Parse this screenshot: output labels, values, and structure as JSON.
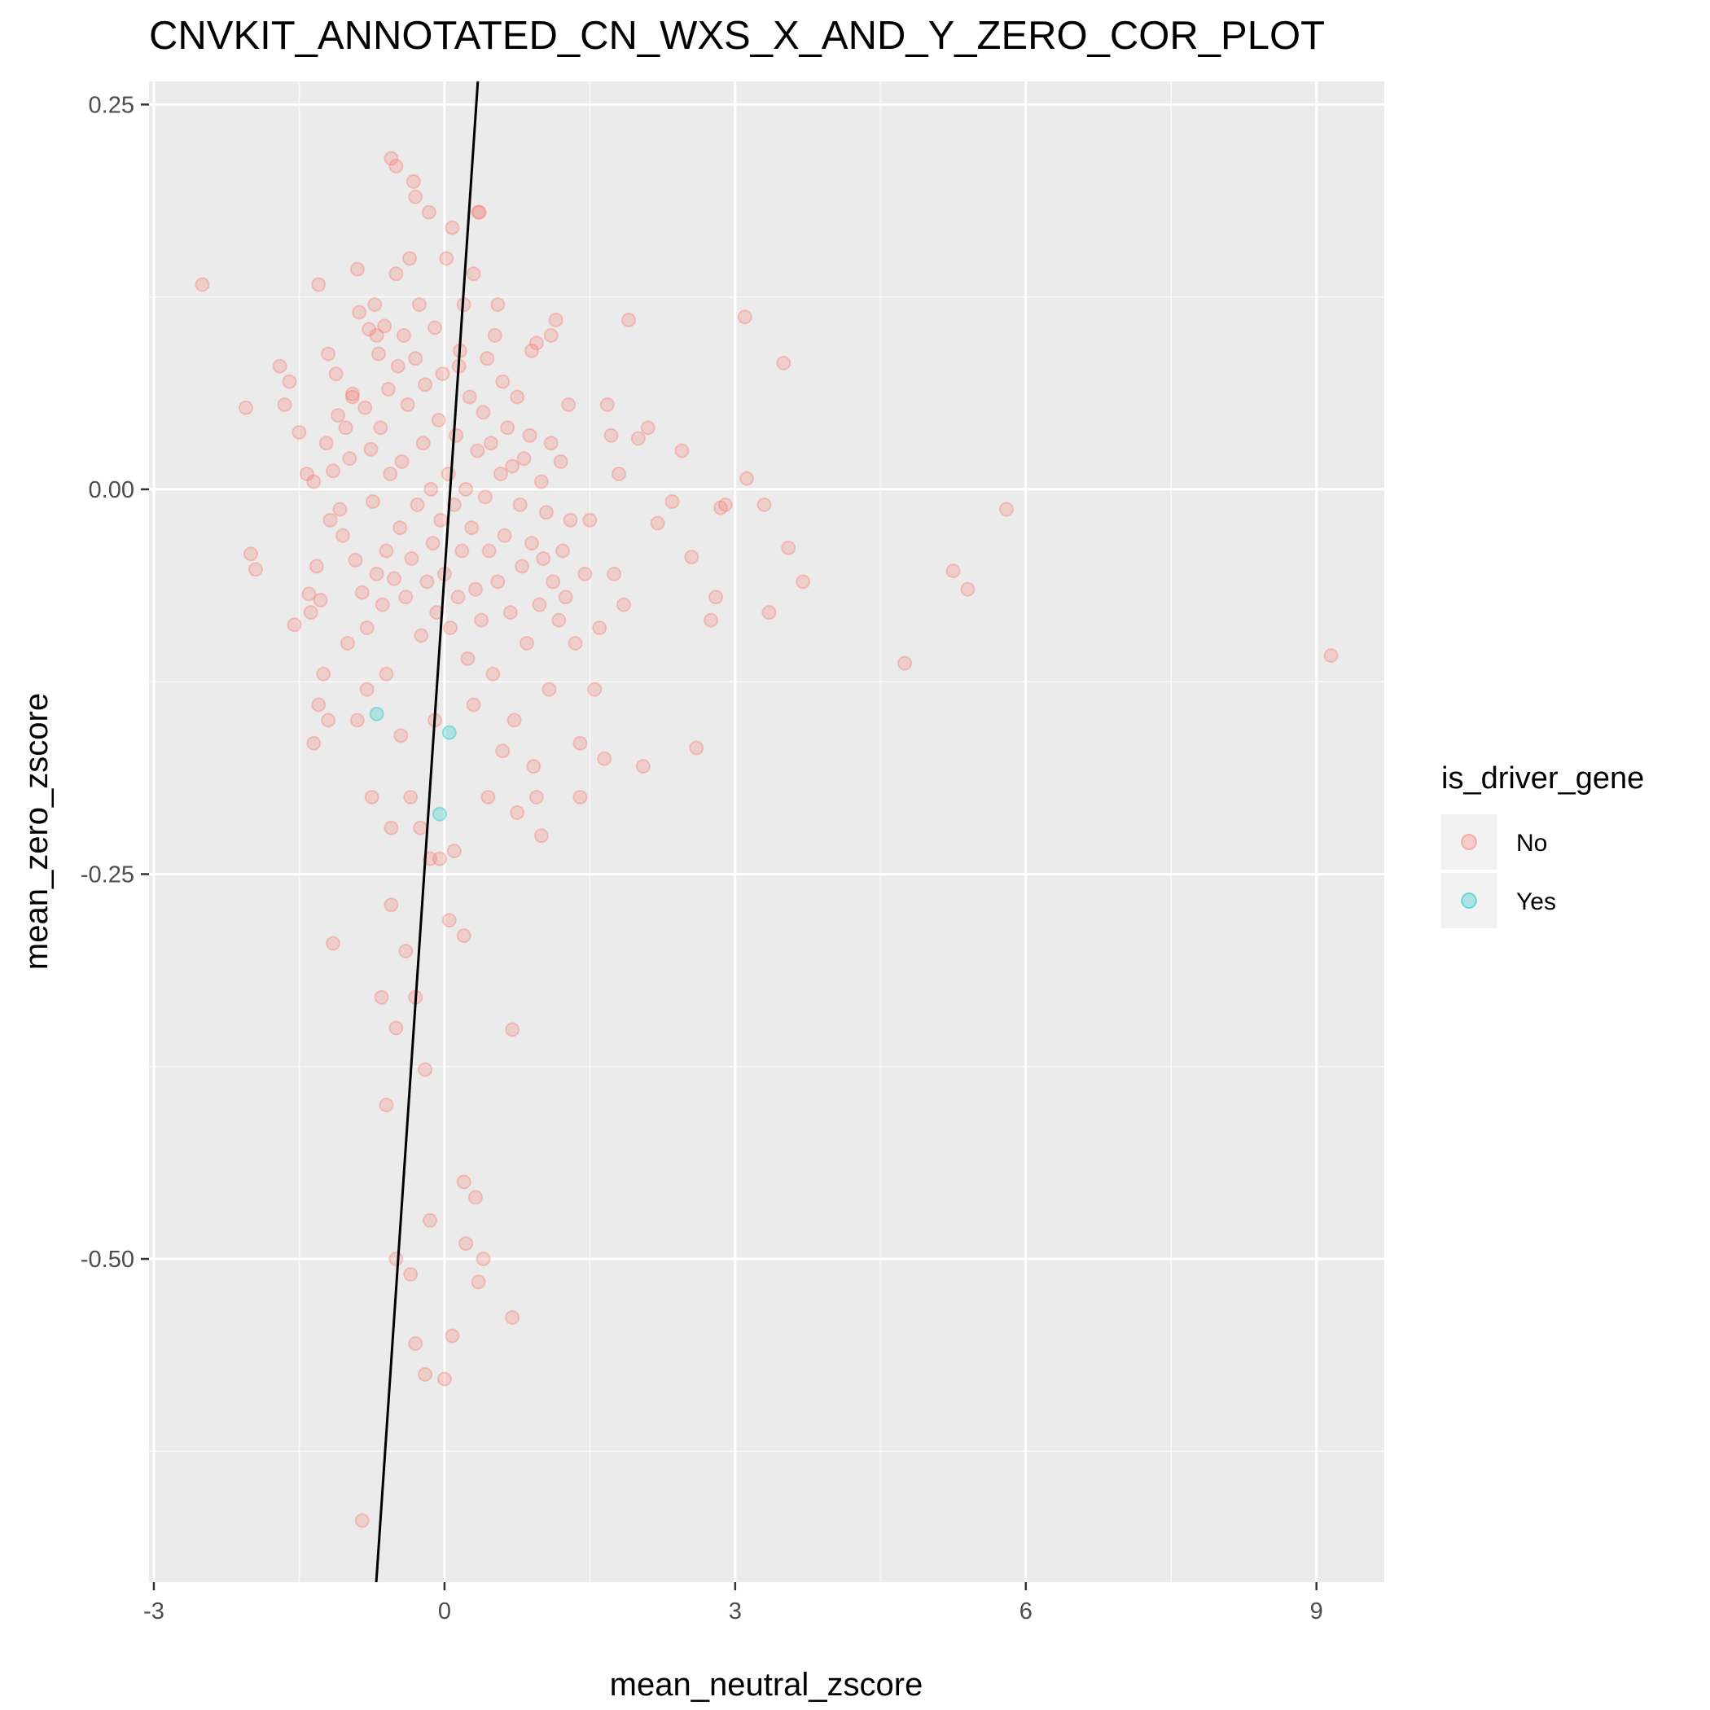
{
  "chart_data": {
    "type": "scatter",
    "title": "CNVKIT_ANNOTATED_CN_WXS_X_AND_Y_ZERO_COR_PLOT",
    "xlabel": "mean_neutral_zscore",
    "ylabel": "mean_zero_zscore",
    "xlim": [
      -3.05,
      9.7
    ],
    "ylim": [
      -0.71,
      0.265
    ],
    "x_ticks": [
      -3,
      0,
      3,
      6,
      9
    ],
    "x_tick_labels": [
      "-3",
      "0",
      "3",
      "6",
      "9"
    ],
    "y_ticks": [
      -0.5,
      -0.25,
      0.0,
      0.25
    ],
    "y_tick_labels": [
      "-0.50",
      "-0.25",
      "0.00",
      "0.25"
    ],
    "grid": true,
    "legend": {
      "title": "is_driver_gene",
      "position": "right",
      "entries": [
        {
          "label": "No",
          "color": "#F8766D"
        },
        {
          "label": "Yes",
          "color": "#00BFC4"
        }
      ]
    },
    "series": [
      {
        "name": "No",
        "color": "#F8766D",
        "points": [
          [
            -2.5,
            0.133
          ],
          [
            -2.05,
            0.053
          ],
          [
            -2.0,
            -0.042
          ],
          [
            -1.95,
            -0.052
          ],
          [
            -1.7,
            0.08
          ],
          [
            -1.65,
            0.055
          ],
          [
            -1.6,
            0.07
          ],
          [
            -1.55,
            -0.088
          ],
          [
            -1.5,
            0.037
          ],
          [
            -1.42,
            0.01
          ],
          [
            -1.4,
            -0.068
          ],
          [
            -1.38,
            -0.08
          ],
          [
            -1.35,
            0.005
          ],
          [
            -1.32,
            -0.05
          ],
          [
            -1.3,
            0.133
          ],
          [
            -1.28,
            -0.072
          ],
          [
            -1.25,
            -0.12
          ],
          [
            -1.22,
            0.03
          ],
          [
            -1.2,
            0.088
          ],
          [
            -1.18,
            -0.02
          ],
          [
            -1.15,
            0.012
          ],
          [
            -1.12,
            0.075
          ],
          [
            -1.1,
            0.048
          ],
          [
            -1.08,
            -0.013
          ],
          [
            -1.05,
            -0.03
          ],
          [
            -1.02,
            0.04
          ],
          [
            -1.0,
            -0.1
          ],
          [
            -0.98,
            0.02
          ],
          [
            -0.95,
            0.062
          ],
          [
            -0.92,
            -0.046
          ],
          [
            -0.9,
            0.143
          ],
          [
            -0.88,
            0.115
          ],
          [
            -0.85,
            -0.067
          ],
          [
            -0.82,
            0.053
          ],
          [
            -0.8,
            -0.09
          ],
          [
            -0.78,
            0.104
          ],
          [
            -0.76,
            0.026
          ],
          [
            -0.74,
            -0.008
          ],
          [
            -0.72,
            0.12
          ],
          [
            -0.7,
            -0.055
          ],
          [
            -0.68,
            0.088
          ],
          [
            -0.66,
            0.04
          ],
          [
            -0.64,
            -0.075
          ],
          [
            -0.62,
            0.106
          ],
          [
            -0.6,
            -0.04
          ],
          [
            -0.58,
            0.065
          ],
          [
            -0.56,
            0.01
          ],
          [
            -0.55,
            0.215
          ],
          [
            -0.52,
            -0.058
          ],
          [
            -0.5,
            0.14
          ],
          [
            -0.48,
            0.08
          ],
          [
            -0.46,
            -0.025
          ],
          [
            -0.44,
            0.018
          ],
          [
            -0.42,
            0.1
          ],
          [
            -0.4,
            -0.07
          ],
          [
            -0.38,
            0.055
          ],
          [
            -0.36,
            0.15
          ],
          [
            -0.34,
            -0.045
          ],
          [
            -0.32,
            0.2
          ],
          [
            -0.3,
            0.085
          ],
          [
            -0.28,
            -0.01
          ],
          [
            -0.26,
            0.12
          ],
          [
            -0.24,
            -0.095
          ],
          [
            -0.22,
            0.03
          ],
          [
            -0.2,
            0.068
          ],
          [
            -0.18,
            -0.06
          ],
          [
            -0.16,
            0.18
          ],
          [
            -0.14,
            0.0
          ],
          [
            -0.12,
            -0.035
          ],
          [
            -0.1,
            0.105
          ],
          [
            -0.08,
            -0.08
          ],
          [
            -0.06,
            0.045
          ],
          [
            -0.04,
            -0.02
          ],
          [
            -0.02,
            0.075
          ],
          [
            0.0,
            -0.055
          ],
          [
            0.02,
            0.15
          ],
          [
            0.04,
            0.01
          ],
          [
            0.06,
            -0.09
          ],
          [
            0.08,
            0.17
          ],
          [
            0.1,
            -0.01
          ],
          [
            0.12,
            0.035
          ],
          [
            0.14,
            -0.07
          ],
          [
            0.16,
            0.09
          ],
          [
            0.18,
            -0.04
          ],
          [
            0.2,
            0.12
          ],
          [
            0.22,
            0.0
          ],
          [
            0.24,
            -0.11
          ],
          [
            0.26,
            0.06
          ],
          [
            0.28,
            -0.025
          ],
          [
            0.3,
            0.14
          ],
          [
            0.32,
            -0.065
          ],
          [
            0.34,
            0.025
          ],
          [
            0.36,
            0.18
          ],
          [
            0.38,
            -0.085
          ],
          [
            0.4,
            0.05
          ],
          [
            0.42,
            -0.005
          ],
          [
            0.44,
            0.085
          ],
          [
            0.46,
            -0.04
          ],
          [
            0.48,
            0.03
          ],
          [
            0.5,
            -0.12
          ],
          [
            0.52,
            0.1
          ],
          [
            0.55,
            -0.06
          ],
          [
            0.58,
            0.01
          ],
          [
            0.6,
            0.07
          ],
          [
            0.62,
            -0.03
          ],
          [
            0.65,
            0.04
          ],
          [
            0.68,
            -0.08
          ],
          [
            0.7,
            0.015
          ],
          [
            0.72,
            -0.15
          ],
          [
            0.75,
            0.06
          ],
          [
            0.78,
            -0.01
          ],
          [
            0.8,
            -0.05
          ],
          [
            0.82,
            0.02
          ],
          [
            0.85,
            -0.1
          ],
          [
            0.88,
            0.035
          ],
          [
            0.9,
            -0.035
          ],
          [
            0.92,
            -0.18
          ],
          [
            0.95,
            0.095
          ],
          [
            0.98,
            -0.075
          ],
          [
            1.0,
            0.005
          ],
          [
            1.02,
            -0.045
          ],
          [
            1.05,
            -0.015
          ],
          [
            1.08,
            -0.13
          ],
          [
            1.1,
            0.03
          ],
          [
            1.12,
            -0.06
          ],
          [
            1.15,
            0.11
          ],
          [
            1.18,
            -0.085
          ],
          [
            1.2,
            0.018
          ],
          [
            1.22,
            -0.04
          ],
          [
            1.25,
            -0.07
          ],
          [
            1.28,
            0.055
          ],
          [
            1.3,
            -0.02
          ],
          [
            1.35,
            -0.1
          ],
          [
            1.4,
            -0.165
          ],
          [
            1.45,
            -0.055
          ],
          [
            1.5,
            -0.02
          ],
          [
            1.55,
            -0.13
          ],
          [
            1.6,
            -0.09
          ],
          [
            1.65,
            -0.175
          ],
          [
            1.68,
            0.055
          ],
          [
            1.72,
            0.035
          ],
          [
            1.75,
            -0.055
          ],
          [
            1.8,
            0.01
          ],
          [
            1.85,
            -0.075
          ],
          [
            1.9,
            0.11
          ],
          [
            2.0,
            0.033
          ],
          [
            2.05,
            -0.18
          ],
          [
            2.1,
            0.04
          ],
          [
            2.2,
            -0.022
          ],
          [
            2.35,
            -0.008
          ],
          [
            2.45,
            0.025
          ],
          [
            2.55,
            -0.044
          ],
          [
            2.6,
            -0.168
          ],
          [
            2.75,
            -0.085
          ],
          [
            2.8,
            -0.07
          ],
          [
            2.85,
            -0.012
          ],
          [
            2.9,
            -0.01
          ],
          [
            3.1,
            0.112
          ],
          [
            3.12,
            0.007
          ],
          [
            3.3,
            -0.01
          ],
          [
            3.35,
            -0.08
          ],
          [
            3.5,
            0.082
          ],
          [
            3.55,
            -0.038
          ],
          [
            3.7,
            -0.06
          ],
          [
            4.75,
            -0.113
          ],
          [
            5.25,
            -0.053
          ],
          [
            5.4,
            -0.065
          ],
          [
            5.8,
            -0.013
          ],
          [
            9.15,
            -0.108
          ],
          [
            -0.5,
            0.21
          ],
          [
            -0.3,
            0.19
          ],
          [
            0.35,
            0.18
          ],
          [
            -0.6,
            -0.12
          ],
          [
            -0.45,
            -0.16
          ],
          [
            -0.35,
            -0.2
          ],
          [
            -0.25,
            -0.22
          ],
          [
            -0.15,
            -0.24
          ],
          [
            -0.55,
            -0.27
          ],
          [
            -0.4,
            -0.3
          ],
          [
            -0.5,
            -0.35
          ],
          [
            -0.6,
            -0.4
          ],
          [
            -0.3,
            -0.33
          ],
          [
            0.05,
            -0.28
          ],
          [
            0.2,
            -0.29
          ],
          [
            0.7,
            -0.351
          ],
          [
            -0.2,
            -0.377
          ],
          [
            0.2,
            -0.45
          ],
          [
            0.32,
            -0.46
          ],
          [
            -0.15,
            -0.475
          ],
          [
            0.22,
            -0.49
          ],
          [
            -0.5,
            -0.5
          ],
          [
            0.4,
            -0.5
          ],
          [
            -0.35,
            -0.51
          ],
          [
            0.35,
            -0.515
          ],
          [
            0.7,
            -0.538
          ],
          [
            -0.3,
            -0.555
          ],
          [
            0.08,
            -0.55
          ],
          [
            -0.2,
            -0.575
          ],
          [
            0.0,
            -0.578
          ],
          [
            -0.85,
            -0.67
          ],
          [
            -1.15,
            -0.295
          ],
          [
            -0.65,
            -0.33
          ],
          [
            0.1,
            -0.235
          ],
          [
            -0.05,
            -0.24
          ],
          [
            -0.75,
            -0.2
          ],
          [
            -0.9,
            -0.15
          ],
          [
            -0.55,
            -0.22
          ],
          [
            0.45,
            -0.2
          ],
          [
            0.75,
            -0.21
          ],
          [
            1.0,
            -0.225
          ],
          [
            1.4,
            -0.2
          ],
          [
            0.95,
            -0.2
          ],
          [
            -0.1,
            -0.15
          ],
          [
            0.3,
            -0.14
          ],
          [
            0.6,
            -0.17
          ],
          [
            -0.8,
            -0.13
          ],
          [
            -1.2,
            -0.15
          ],
          [
            -1.3,
            -0.14
          ],
          [
            -1.35,
            -0.165
          ],
          [
            1.1,
            0.1
          ],
          [
            0.55,
            0.12
          ],
          [
            -0.7,
            0.1
          ],
          [
            -0.95,
            0.06
          ],
          [
            0.9,
            0.09
          ],
          [
            0.15,
            0.08
          ]
        ]
      },
      {
        "name": "Yes",
        "color": "#00BFC4",
        "points": [
          [
            -0.7,
            -0.146
          ],
          [
            0.05,
            -0.158
          ],
          [
            -0.05,
            -0.211
          ]
        ]
      }
    ],
    "fit_line": {
      "intercept": -0.055,
      "slope": 0.93
    }
  }
}
